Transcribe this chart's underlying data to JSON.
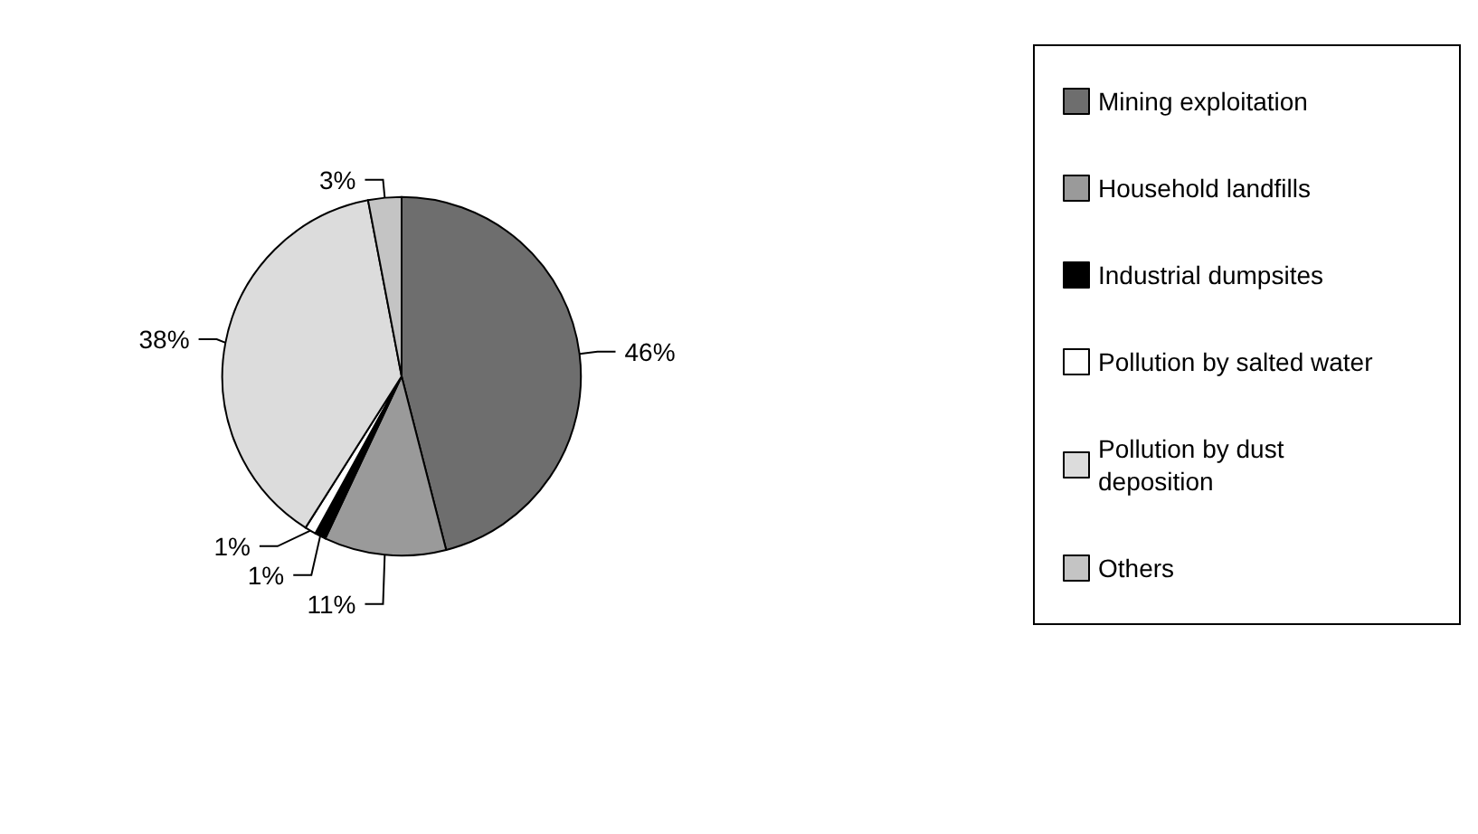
{
  "chart_data": {
    "type": "pie",
    "categories": [
      "Mining exploitation",
      "Household landfills",
      "Industrial dumpsites",
      "Pollution by salted water",
      "Pollution by dust deposition",
      "Others"
    ],
    "values": [
      46,
      11,
      1,
      1,
      38,
      3
    ],
    "value_labels": [
      "46%",
      "11%",
      "1%",
      "1%",
      "38%",
      "3%"
    ],
    "colors": [
      "#6e6e6e",
      "#9a9a9a",
      "#000000",
      "#ffffff",
      "#dcdcdc",
      "#c4c4c4"
    ],
    "legend": "right"
  }
}
